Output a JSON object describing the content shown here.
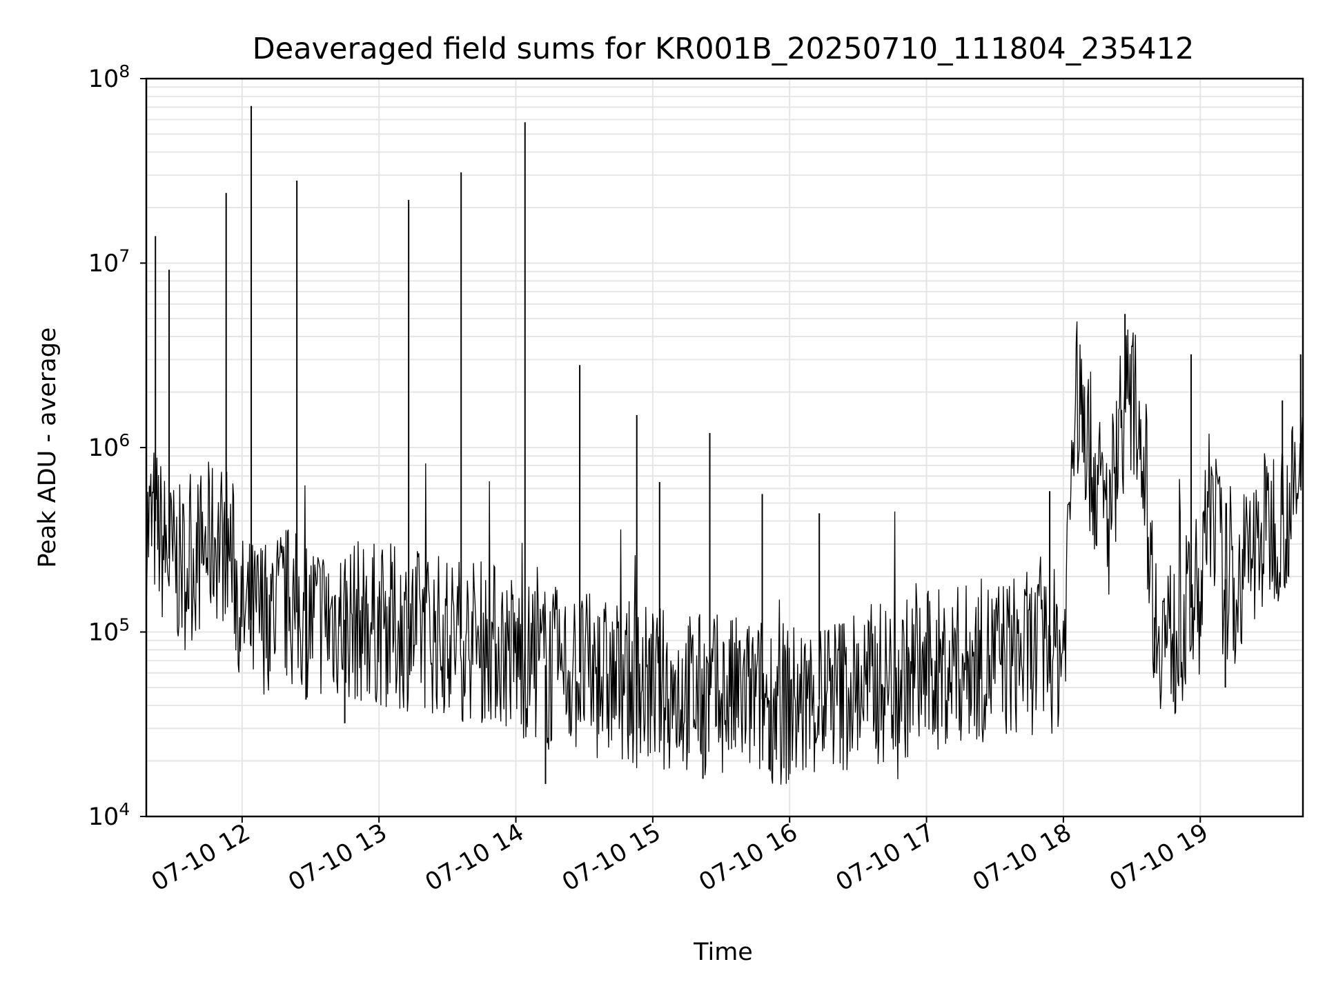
{
  "chart_data": {
    "type": "line",
    "title": "Deaveraged field sums for KR001B_20250710_111804_235412",
    "xlabel": "Time",
    "ylabel": "Peak ADU - average",
    "y_scale": "log",
    "ylim": [
      10000,
      100000000
    ],
    "xlim": [
      "2025-07-10 11:18",
      "2025-07-10 19:45"
    ],
    "grid": true,
    "x_ticks": [
      "07-10 12",
      "07-10 13",
      "07-10 14",
      "07-10 15",
      "07-10 16",
      "07-10 17",
      "07-10 18",
      "07-10 19"
    ],
    "y_ticks": [
      {
        "base": "10",
        "exp": "4"
      },
      {
        "base": "10",
        "exp": "5"
      },
      {
        "base": "10",
        "exp": "6"
      },
      {
        "base": "10",
        "exp": "7"
      },
      {
        "base": "10",
        "exp": "8"
      }
    ],
    "line_color": "#000000",
    "grid_color": "#e5e5e5",
    "series": [
      {
        "x": [
          "2025-07-10 11:18",
          "2025-07-10 11:22",
          "2025-07-10 11:25",
          "2025-07-10 11:28",
          "2025-07-10 11:31",
          "2025-07-10 11:35",
          "2025-07-10 11:40",
          "2025-07-10 11:45",
          "2025-07-10 11:50",
          "2025-07-10 11:55",
          "2025-07-10 12:00",
          "2025-07-10 12:05",
          "2025-07-10 12:10",
          "2025-07-10 12:15",
          "2025-07-10 12:20",
          "2025-07-10 12:25",
          "2025-07-10 12:30",
          "2025-07-10 12:40",
          "2025-07-10 12:50",
          "2025-07-10 13:00",
          "2025-07-10 13:10",
          "2025-07-10 13:20",
          "2025-07-10 13:30",
          "2025-07-10 13:40",
          "2025-07-10 13:50",
          "2025-07-10 14:00",
          "2025-07-10 14:05",
          "2025-07-10 14:10",
          "2025-07-10 14:20",
          "2025-07-10 14:30",
          "2025-07-10 14:40",
          "2025-07-10 14:50",
          "2025-07-10 15:00",
          "2025-07-10 15:10",
          "2025-07-10 15:20",
          "2025-07-10 15:30",
          "2025-07-10 15:40",
          "2025-07-10 15:50",
          "2025-07-10 16:00",
          "2025-07-10 16:10",
          "2025-07-10 16:20",
          "2025-07-10 16:30",
          "2025-07-10 16:40",
          "2025-07-10 16:50",
          "2025-07-10 17:00",
          "2025-07-10 17:10",
          "2025-07-10 17:20",
          "2025-07-10 17:30",
          "2025-07-10 17:40",
          "2025-07-10 17:50",
          "2025-07-10 18:00",
          "2025-07-10 18:05",
          "2025-07-10 18:10",
          "2025-07-10 18:15",
          "2025-07-10 18:20",
          "2025-07-10 18:25",
          "2025-07-10 18:30",
          "2025-07-10 18:35",
          "2025-07-10 18:40",
          "2025-07-10 18:45",
          "2025-07-10 18:50",
          "2025-07-10 18:55",
          "2025-07-10 19:00",
          "2025-07-10 19:05",
          "2025-07-10 19:10",
          "2025-07-10 19:15",
          "2025-07-10 19:20",
          "2025-07-10 19:25",
          "2025-07-10 19:30",
          "2025-07-10 19:35",
          "2025-07-10 19:40",
          "2025-07-10 19:45"
        ],
        "y": [
          350000,
          400000,
          300000,
          250000,
          230000,
          220000,
          260000,
          300000,
          320000,
          280000,
          120000,
          115000,
          130000,
          135000,
          140000,
          125000,
          120000,
          118000,
          115000,
          110000,
          105000,
          102000,
          95000,
          90000,
          88000,
          75000,
          70000,
          68000,
          62000,
          60000,
          55000,
          52000,
          50000,
          48000,
          46000,
          45000,
          44000,
          43000,
          40000,
          42000,
          46000,
          50000,
          53000,
          56000,
          60000,
          64000,
          68000,
          72000,
          75000,
          78000,
          80000,
          2000000,
          1200000,
          600000,
          400000,
          1500000,
          1800000,
          1100000,
          120000,
          95000,
          90000,
          130000,
          160000,
          600000,
          200000,
          170000,
          230000,
          300000,
          380000,
          420000,
          480000,
          650000
        ]
      }
    ],
    "spikes": [
      {
        "x": "2025-07-10 11:22",
        "y": 14000000
      },
      {
        "x": "2025-07-10 11:28",
        "y": 9200000
      },
      {
        "x": "2025-07-10 11:53",
        "y": 24000000
      },
      {
        "x": "2025-07-10 12:04",
        "y": 71000000
      },
      {
        "x": "2025-07-10 12:24",
        "y": 28000000
      },
      {
        "x": "2025-07-10 13:13",
        "y": 22000000
      },
      {
        "x": "2025-07-10 13:36",
        "y": 31000000
      },
      {
        "x": "2025-07-10 14:04",
        "y": 58000000
      },
      {
        "x": "2025-07-10 14:28",
        "y": 2800000
      },
      {
        "x": "2025-07-10 14:53",
        "y": 1500000
      },
      {
        "x": "2025-07-10 15:03",
        "y": 650000
      },
      {
        "x": "2025-07-10 15:25",
        "y": 1200000
      },
      {
        "x": "2025-07-10 15:48",
        "y": 560000
      },
      {
        "x": "2025-07-10 16:13",
        "y": 440000
      },
      {
        "x": "2025-07-10 17:54",
        "y": 580000
      },
      {
        "x": "2025-07-10 18:27",
        "y": 5300000
      },
      {
        "x": "2025-07-10 18:56",
        "y": 3200000
      },
      {
        "x": "2025-07-10 19:36",
        "y": 1800000
      },
      {
        "x": "2025-07-10 19:44",
        "y": 3200000
      }
    ],
    "dips": [
      {
        "x": "2025-07-10 12:28",
        "y": 43000
      },
      {
        "x": "2025-07-10 12:45",
        "y": 32000
      },
      {
        "x": "2025-07-10 14:13",
        "y": 15000
      },
      {
        "x": "2025-07-10 15:22",
        "y": 16000
      },
      {
        "x": "2025-07-10 15:51",
        "y": 18000
      },
      {
        "x": "2025-07-10 18:40",
        "y": 60000
      },
      {
        "x": "2025-07-10 19:11",
        "y": 50000
      }
    ]
  }
}
